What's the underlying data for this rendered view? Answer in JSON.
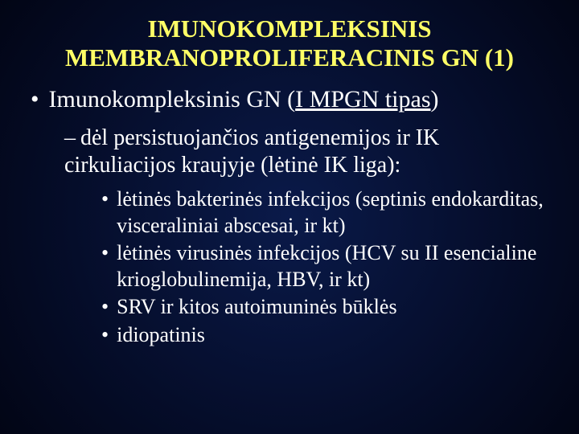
{
  "title_line1": "IMUNOKOMPLEKSINIS",
  "title_line2": "MEMBRANOPROLIFERACINIS GN (1)",
  "bullet1_prefix": "Imunokompleksinis GN (",
  "bullet1_underlined": "I MPGN tipas",
  "bullet1_suffix": ")",
  "sub1": "dėl persistuojančios antigenemijos ir IK cirkuliacijos kraujyje (lėtinė IK liga):",
  "sub2a": "lėtinės bakterinės infekcijos (septinis endokarditas, visceraliniai abscesai, ir kt)",
  "sub2b": "lėtinės virusinės infekcijos (HCV su II esencialine krioglobulinemija, HBV, ir kt)",
  "sub2c": "SRV ir kitos autoimuninės būklės",
  "sub2d": "idiopatinis",
  "colors": {
    "title": "#ffff66",
    "body_text": "#ffffff",
    "bg_center": "#0a1a4a",
    "bg_edge": "#020515"
  },
  "font_sizes": {
    "title": 31,
    "level1": 30,
    "level2": 28,
    "level3": 26
  }
}
